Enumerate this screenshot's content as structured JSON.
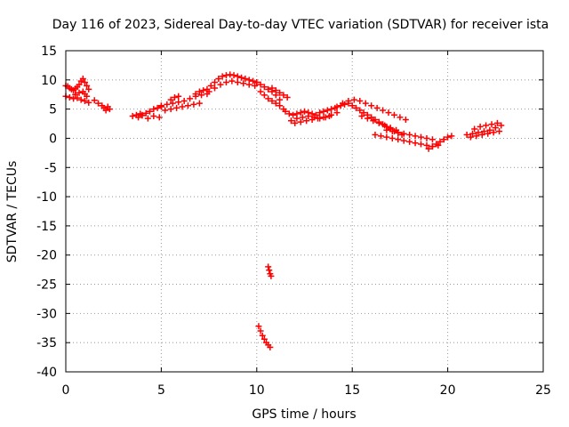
{
  "chart_data": {
    "type": "scatter",
    "title": "Day 116 of 2023, Sidereal Day-to-day VTEC variation (SDTVAR) for receiver ista",
    "xlabel": "GPS time / hours",
    "ylabel": "SDTVAR / TECUs",
    "xlim": [
      0,
      25
    ],
    "ylim": [
      -40,
      15
    ],
    "xticks": [
      0,
      5,
      10,
      15,
      20,
      25
    ],
    "yticks": [
      15,
      10,
      5,
      0,
      -5,
      -10,
      -15,
      -20,
      -25,
      -30,
      -35,
      -40
    ],
    "grid": true,
    "marker": "+",
    "color": "#ff0000",
    "series": [
      {
        "name": "SDTVAR",
        "x": [
          0.0,
          0.1,
          0.2,
          0.3,
          0.4,
          0.5,
          0.6,
          0.7,
          0.8,
          0.9,
          1.0,
          1.1,
          1.2,
          0.0,
          0.2,
          0.4,
          0.6,
          0.8,
          1.0,
          1.2,
          0.5,
          0.7,
          0.9,
          1.0,
          1.1,
          1.5,
          1.7,
          1.9,
          2.0,
          2.1,
          2.2,
          2.3,
          3.5,
          3.7,
          3.9,
          4.0,
          4.2,
          4.4,
          4.6,
          4.8,
          5.0,
          3.8,
          4.0,
          4.3,
          4.6,
          4.9,
          5.0,
          5.3,
          5.6,
          5.9,
          6.2,
          6.5,
          6.8,
          7.1,
          7.4,
          5.2,
          5.5,
          5.8,
          6.1,
          6.4,
          6.7,
          7.0,
          5.5,
          5.7,
          5.9,
          6.8,
          7.0,
          7.2,
          7.4,
          7.6,
          7.8,
          8.0,
          8.2,
          8.4,
          8.6,
          8.8,
          9.0,
          9.2,
          9.4,
          9.6,
          9.8,
          10.0,
          7.5,
          7.8,
          8.1,
          8.4,
          8.7,
          9.0,
          9.3,
          9.6,
          9.9,
          10.0,
          10.2,
          10.4,
          10.6,
          10.8,
          11.0,
          11.2,
          10.2,
          10.4,
          10.6,
          10.8,
          11.0,
          11.2,
          11.4,
          10.8,
          11.0,
          11.2,
          11.4,
          11.6,
          11.5,
          11.7,
          11.9,
          12.1,
          12.3,
          12.5,
          12.7,
          12.9,
          13.1,
          13.3,
          13.5,
          13.7,
          13.9,
          14.1,
          11.8,
          12.1,
          12.4,
          12.7,
          13.0,
          13.3,
          13.6,
          13.9,
          14.2,
          12.0,
          12.3,
          12.6,
          12.9,
          13.2,
          13.5,
          13.8,
          14.2,
          14.4,
          14.6,
          14.8,
          15.0,
          15.2,
          15.4,
          15.6,
          15.8,
          16.0,
          16.2,
          16.4,
          16.6,
          16.8,
          17.0,
          17.2,
          17.4,
          17.6,
          14.5,
          14.8,
          15.1,
          15.4,
          15.7,
          16.0,
          16.3,
          16.6,
          16.9,
          17.2,
          17.5,
          17.8,
          15.5,
          15.8,
          16.1,
          16.4,
          16.7,
          17.0,
          17.3,
          16.2,
          16.5,
          16.8,
          17.1,
          17.4,
          17.7,
          18.0,
          18.3,
          18.6,
          18.9,
          19.2,
          19.5,
          16.8,
          17.1,
          17.4,
          17.7,
          18.0,
          18.3,
          18.6,
          18.9,
          19.2,
          19.0,
          19.2,
          19.4,
          19.6,
          19.8,
          20.0,
          20.2,
          21.0,
          21.3,
          21.6,
          21.9,
          22.2,
          22.5,
          22.8,
          21.2,
          21.5,
          21.8,
          22.1,
          22.4,
          22.7,
          21.4,
          21.7,
          22.0,
          22.3,
          22.6,
          10.1,
          10.2,
          10.3,
          10.4,
          10.5,
          10.6,
          10.7,
          10.6,
          10.65,
          10.7,
          10.75
        ],
        "y": [
          9.0,
          8.9,
          8.6,
          8.4,
          8.2,
          8.5,
          8.8,
          9.2,
          9.8,
          10.2,
          9.6,
          9.0,
          8.4,
          7.2,
          7.0,
          6.8,
          6.9,
          6.6,
          6.4,
          6.1,
          7.5,
          7.8,
          8.0,
          7.6,
          7.2,
          6.5,
          6.0,
          5.6,
          5.2,
          4.8,
          5.4,
          5.0,
          3.8,
          4.0,
          4.2,
          4.0,
          4.3,
          4.6,
          5.0,
          5.2,
          5.4,
          3.6,
          3.9,
          3.4,
          3.8,
          3.6,
          5.6,
          5.8,
          6.0,
          6.2,
          6.4,
          6.8,
          7.2,
          7.4,
          7.6,
          4.8,
          5.0,
          5.2,
          5.4,
          5.6,
          5.8,
          6.0,
          6.6,
          7.0,
          7.2,
          7.6,
          8.0,
          8.2,
          8.4,
          9.0,
          9.6,
          10.2,
          10.6,
          10.8,
          10.9,
          10.8,
          10.6,
          10.4,
          10.2,
          10.0,
          9.8,
          9.6,
          8.0,
          8.6,
          9.2,
          9.6,
          9.8,
          9.6,
          9.4,
          9.2,
          9.0,
          9.6,
          9.2,
          8.8,
          8.4,
          8.0,
          7.4,
          6.6,
          8.0,
          7.4,
          6.8,
          6.4,
          6.0,
          5.6,
          5.0,
          8.6,
          8.2,
          7.8,
          7.4,
          7.0,
          4.6,
          4.2,
          4.0,
          4.2,
          4.4,
          4.6,
          4.4,
          4.2,
          4.0,
          4.4,
          4.6,
          4.8,
          5.0,
          5.2,
          3.0,
          3.4,
          3.6,
          3.8,
          3.6,
          3.4,
          3.6,
          4.0,
          4.4,
          2.6,
          2.8,
          3.0,
          3.2,
          3.4,
          3.6,
          3.8,
          5.4,
          5.6,
          5.8,
          6.0,
          5.6,
          5.2,
          4.8,
          4.4,
          4.0,
          3.6,
          3.2,
          2.8,
          2.4,
          2.0,
          1.6,
          1.2,
          0.9,
          0.6,
          6.0,
          6.4,
          6.6,
          6.4,
          6.0,
          5.6,
          5.2,
          4.8,
          4.4,
          4.0,
          3.6,
          3.2,
          3.8,
          3.4,
          3.0,
          2.6,
          2.2,
          1.8,
          1.4,
          0.6,
          0.4,
          0.2,
          0.0,
          -0.2,
          -0.4,
          -0.6,
          -0.8,
          -1.0,
          -1.2,
          -1.4,
          -1.2,
          1.4,
          1.2,
          1.0,
          0.8,
          0.6,
          0.4,
          0.2,
          0.0,
          -0.2,
          -1.8,
          -1.4,
          -1.0,
          -0.6,
          -0.2,
          0.2,
          0.4,
          0.6,
          0.8,
          1.0,
          1.2,
          1.4,
          1.8,
          2.2,
          0.2,
          0.4,
          0.6,
          0.8,
          1.0,
          1.2,
          1.6,
          2.0,
          2.2,
          2.4,
          2.6,
          -32.2,
          -33.0,
          -33.8,
          -34.4,
          -35.0,
          -35.4,
          -35.8,
          -22.0,
          -22.6,
          -23.2,
          -23.6
        ]
      }
    ]
  }
}
